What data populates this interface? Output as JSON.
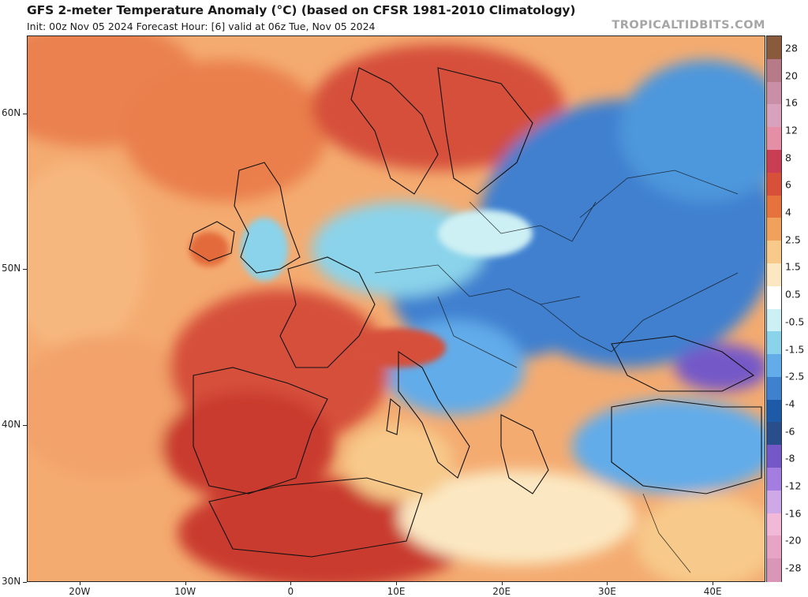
{
  "title": "GFS 2-meter Temperature Anomaly (°C) (based on CFSR 1981-2010 Climatology)",
  "subtitle": "Init: 00z Nov 05 2024   Forecast Hour: [6]   valid at 06z Tue, Nov 05 2024",
  "brand": "TROPICALTIDBITS.COM",
  "axes": {
    "lat_labels": [
      {
        "label": "60N",
        "value": 60
      },
      {
        "label": "50N",
        "value": 50
      },
      {
        "label": "40N",
        "value": 40
      },
      {
        "label": "30N",
        "value": 30
      }
    ],
    "lon_labels": [
      {
        "label": "20W",
        "value": -20
      },
      {
        "label": "10W",
        "value": -10
      },
      {
        "label": "0",
        "value": 0
      },
      {
        "label": "10E",
        "value": 10
      },
      {
        "label": "20E",
        "value": 20
      },
      {
        "label": "30E",
        "value": 30
      },
      {
        "label": "40E",
        "value": 40
      }
    ],
    "lon_range": [
      -25,
      45
    ],
    "lat_range": [
      30,
      65
    ]
  },
  "colorbar": {
    "labels": [
      "28",
      "20",
      "16",
      "12",
      "8",
      "6",
      "4",
      "2.5",
      "1.5",
      "0.5",
      "-0.5",
      "-1.5",
      "-2.5",
      "-4",
      "-6",
      "-8",
      "-12",
      "-16",
      "-20",
      "-28"
    ],
    "colors": [
      "#8a5a3c",
      "#b77a88",
      "#c98fa6",
      "#d8a2bd",
      "#e58fa6",
      "#c93e52",
      "#d6503a",
      "#e6733e",
      "#f0a25c",
      "#f7c98a",
      "#fbe8c2",
      "#ffffff",
      "#cdf0f4",
      "#8ad3ea",
      "#62acea",
      "#3f80cf",
      "#1d5aa8",
      "#2a4d8c",
      "#7558c8",
      "#a37de0",
      "#cfa8e8",
      "#f2b8d8",
      "#e8a4c4",
      "#d996b6"
    ]
  },
  "legend_colors": {
    "warm_strong": "#c93a2e",
    "warm": "#e36b3a",
    "warm_light": "#f3a669",
    "neutral": "#fbe7c6",
    "cool_light": "#8fd0ec",
    "cool": "#4d97dc",
    "cool_strong": "#2b68b8",
    "cold_extreme": "#7a5ad2"
  }
}
